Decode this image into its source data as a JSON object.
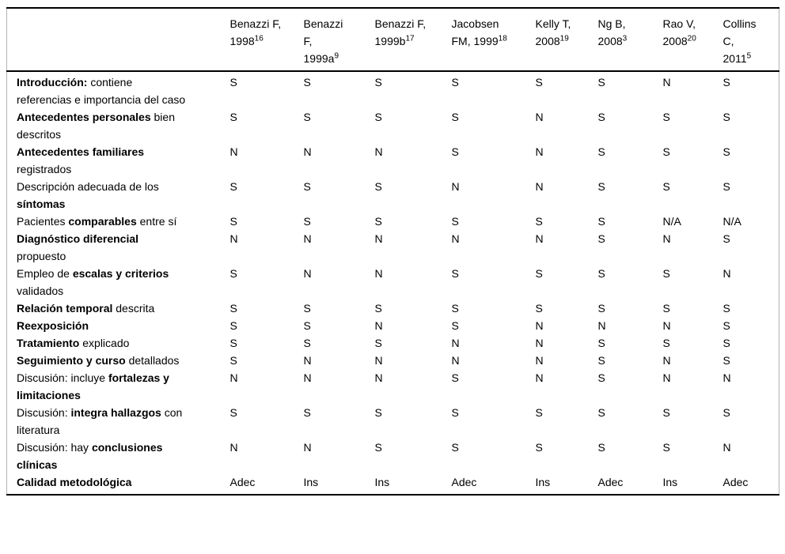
{
  "table": {
    "columns": [
      {
        "label": "Benazzi F, 1998",
        "sup": "16"
      },
      {
        "label": "Benazzi F, 1999a",
        "sup": "9"
      },
      {
        "label": "Benazzi F, 1999b",
        "sup": "17"
      },
      {
        "label": "Jacobsen FM, 1999",
        "sup": "18"
      },
      {
        "label": "Kelly T, 2008",
        "sup": "19"
      },
      {
        "label": "Ng B, 2008",
        "sup": "3"
      },
      {
        "label": "Rao V, 2008",
        "sup": "20"
      },
      {
        "label": "Collins C, 2011",
        "sup": "5"
      }
    ],
    "rows": [
      {
        "label": [
          {
            "t": "Introducción:",
            "b": true
          },
          {
            "t": " contiene referencias e importancia del caso",
            "b": false
          }
        ],
        "values": [
          "S",
          "S",
          "S",
          "S",
          "S",
          "S",
          "N",
          "S"
        ]
      },
      {
        "label": [
          {
            "t": "Antecedentes personales",
            "b": true
          },
          {
            "t": " bien descritos",
            "b": false
          }
        ],
        "values": [
          "S",
          "S",
          "S",
          "S",
          "N",
          "S",
          "S",
          "S"
        ]
      },
      {
        "label": [
          {
            "t": "Antecedentes familiares",
            "b": true
          },
          {
            "t": " registrados",
            "b": false
          }
        ],
        "values": [
          "N",
          "N",
          "N",
          "S",
          "N",
          "S",
          "S",
          "S"
        ]
      },
      {
        "label": [
          {
            "t": "Descripción adecuada de los ",
            "b": false
          },
          {
            "t": "síntomas",
            "b": true
          }
        ],
        "values": [
          "S",
          "S",
          "S",
          "N",
          "N",
          "S",
          "S",
          "S"
        ]
      },
      {
        "label": [
          {
            "t": "Pacientes ",
            "b": false
          },
          {
            "t": "comparables",
            "b": true
          },
          {
            "t": " entre sí",
            "b": false
          }
        ],
        "values": [
          "S",
          "S",
          "S",
          "S",
          "S",
          "S",
          "N/A",
          "N/A"
        ]
      },
      {
        "label": [
          {
            "t": "Diagnóstico diferencial",
            "b": true
          },
          {
            "t": " propuesto",
            "b": false
          }
        ],
        "values": [
          "N",
          "N",
          "N",
          "N",
          "N",
          "S",
          "N",
          "S"
        ]
      },
      {
        "label": [
          {
            "t": "Empleo de ",
            "b": false
          },
          {
            "t": "escalas y criterios",
            "b": true
          },
          {
            "t": " validados",
            "b": false
          }
        ],
        "values": [
          "S",
          "N",
          "N",
          "S",
          "S",
          "S",
          "S",
          "N"
        ]
      },
      {
        "label": [
          {
            "t": "Relación temporal",
            "b": true
          },
          {
            "t": " descrita",
            "b": false
          }
        ],
        "values": [
          "S",
          "S",
          "S",
          "S",
          "S",
          "S",
          "S",
          "S"
        ]
      },
      {
        "label": [
          {
            "t": "Reexposición",
            "b": true
          }
        ],
        "values": [
          "S",
          "S",
          "N",
          "S",
          "N",
          "N",
          "N",
          "S"
        ]
      },
      {
        "label": [
          {
            "t": "Tratamiento",
            "b": true
          },
          {
            "t": " explicado",
            "b": false
          }
        ],
        "values": [
          "S",
          "S",
          "S",
          "N",
          "N",
          "S",
          "S",
          "S"
        ]
      },
      {
        "label": [
          {
            "t": "Seguimiento y curso",
            "b": true
          },
          {
            "t": " detallados",
            "b": false
          }
        ],
        "values": [
          "S",
          "N",
          "N",
          "N",
          "N",
          "S",
          "N",
          "S"
        ]
      },
      {
        "label": [
          {
            "t": "Discusión: incluye ",
            "b": false
          },
          {
            "t": "fortalezas y limitaciones",
            "b": true
          }
        ],
        "values": [
          "N",
          "N",
          "N",
          "S",
          "N",
          "S",
          "N",
          "N"
        ]
      },
      {
        "label": [
          {
            "t": "Discusión: ",
            "b": false
          },
          {
            "t": "integra hallazgos",
            "b": true
          },
          {
            "t": " con literatura",
            "b": false
          }
        ],
        "values": [
          "S",
          "S",
          "S",
          "S",
          "S",
          "S",
          "S",
          "S"
        ]
      },
      {
        "label": [
          {
            "t": "Discusión: hay ",
            "b": false
          },
          {
            "t": "conclusiones clínicas",
            "b": true
          }
        ],
        "values": [
          "N",
          "N",
          "S",
          "S",
          "S",
          "S",
          "S",
          "N"
        ]
      },
      {
        "label": [
          {
            "t": "Calidad metodológica",
            "b": true
          }
        ],
        "values": [
          "Adec",
          "Ins",
          "Ins",
          "Adec",
          "Ins",
          "Adec",
          "Ins",
          "Adec"
        ]
      }
    ]
  }
}
